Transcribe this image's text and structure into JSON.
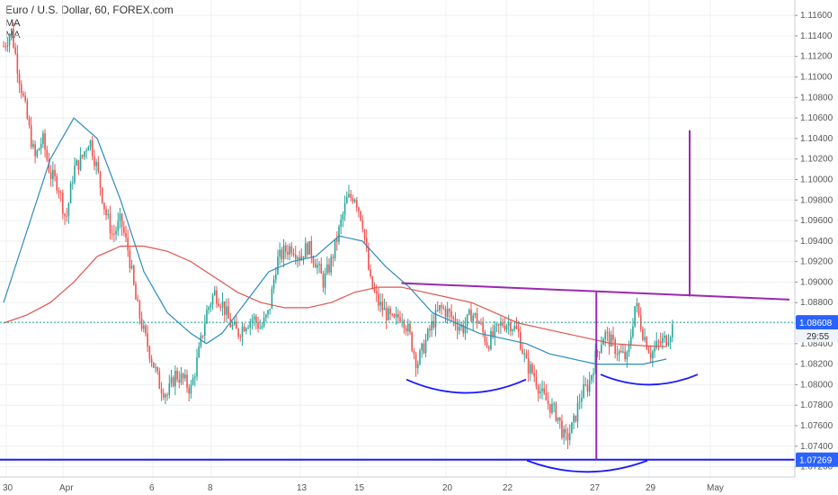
{
  "header": {
    "title": "Euro / U.S. Dollar, 60, FOREX.com",
    "ma1": "MA",
    "ma2": "MA"
  },
  "price_badge": {
    "value": "1.08608",
    "timer": "29:55",
    "color": "#2962ff"
  },
  "support_badge": {
    "value": "1.07269",
    "color": "#2962ff"
  },
  "colors": {
    "candle_up": "#26a69a",
    "candle_down": "#ef5350",
    "ma_fast": "#2b8cbe",
    "ma_slow": "#e0554e",
    "neckline": "#9c27b0",
    "shoulder_arcs": "#1a1aff",
    "support_line": "#1a1aff",
    "last_price_line": "#26a69a"
  },
  "chart_data": {
    "type": "candlestick",
    "title": "Euro / U.S. Dollar, 60, FOREX.com",
    "ylim": [
      1.071,
      1.1175
    ],
    "y_ticks": [
      "1.11600",
      "1.11400",
      "1.11200",
      "1.11000",
      "1.10800",
      "1.10600",
      "1.10400",
      "1.10200",
      "1.10000",
      "1.09800",
      "1.09600",
      "1.09400",
      "1.09200",
      "1.09000",
      "1.08800",
      "1.08600",
      "1.08400",
      "1.08200",
      "1.08000",
      "1.07800",
      "1.07600",
      "1.07400",
      "1.07200"
    ],
    "x_ticks": [
      "30",
      "Apr",
      "6",
      "8",
      "13",
      "15",
      "20",
      "22",
      "27",
      "29",
      "May"
    ],
    "close_path": [
      [
        0,
        1.113
      ],
      [
        1,
        1.1145
      ],
      [
        2,
        1.11
      ],
      [
        3,
        1.106
      ],
      [
        4,
        1.102
      ],
      [
        5,
        1.104
      ],
      [
        6,
        1.1005
      ],
      [
        7,
        1.0995
      ],
      [
        8,
        1.096
      ],
      [
        9,
        1.101
      ],
      [
        10,
        1.102
      ],
      [
        11,
        1.104
      ],
      [
        12,
        1.101
      ],
      [
        13,
        1.097
      ],
      [
        14,
        1.0945
      ],
      [
        15,
        1.096
      ],
      [
        16,
        1.093
      ],
      [
        17,
        1.088
      ],
      [
        18,
        1.085
      ],
      [
        19,
        1.0825
      ],
      [
        20,
        1.08
      ],
      [
        21,
        1.079
      ],
      [
        22,
        1.081
      ],
      [
        23,
        1.0805
      ],
      [
        24,
        1.0795
      ],
      [
        25,
        1.083
      ],
      [
        26,
        1.087
      ],
      [
        27,
        1.089
      ],
      [
        28,
        1.088
      ],
      [
        29,
        1.086
      ],
      [
        30,
        1.085
      ],
      [
        31,
        1.086
      ],
      [
        32,
        1.0865
      ],
      [
        33,
        1.0855
      ],
      [
        34,
        1.087
      ],
      [
        35,
        1.092
      ],
      [
        36,
        1.093
      ],
      [
        37,
        1.0935
      ],
      [
        38,
        1.0925
      ],
      [
        39,
        1.0935
      ],
      [
        40,
        1.092
      ],
      [
        41,
        1.09
      ],
      [
        42,
        1.092
      ],
      [
        43,
        1.095
      ],
      [
        44,
        1.098
      ],
      [
        45,
        1.0985
      ],
      [
        46,
        1.096
      ],
      [
        47,
        1.09
      ],
      [
        48,
        1.088
      ],
      [
        49,
        1.087
      ],
      [
        50,
        1.086
      ],
      [
        51,
        1.087
      ],
      [
        52,
        1.085
      ],
      [
        53,
        1.082
      ],
      [
        54,
        1.084
      ],
      [
        55,
        1.086
      ],
      [
        56,
        1.0875
      ],
      [
        57,
        1.087
      ],
      [
        58,
        1.086
      ],
      [
        59,
        1.0855
      ],
      [
        60,
        1.087
      ],
      [
        61,
        1.086
      ],
      [
        62,
        1.084
      ],
      [
        63,
        1.085
      ],
      [
        64,
        1.086
      ],
      [
        65,
        1.086
      ],
      [
        66,
        1.085
      ],
      [
        67,
        1.082
      ],
      [
        68,
        1.081
      ],
      [
        69,
        1.079
      ],
      [
        70,
        1.078
      ],
      [
        71,
        1.077
      ],
      [
        72,
        1.0745
      ],
      [
        73,
        1.076
      ],
      [
        74,
        1.079
      ],
      [
        75,
        1.08
      ],
      [
        76,
        1.083
      ],
      [
        77,
        1.085
      ],
      [
        78,
        1.084
      ],
      [
        79,
        1.083
      ],
      [
        80,
        1.0825
      ],
      [
        81,
        1.088
      ],
      [
        82,
        1.085
      ],
      [
        83,
        1.083
      ],
      [
        84,
        1.084
      ],
      [
        85,
        1.0845
      ],
      [
        86,
        1.086
      ]
    ],
    "ma_fast": [
      [
        0,
        1.088
      ],
      [
        3,
        1.095
      ],
      [
        6,
        1.102
      ],
      [
        9,
        1.106
      ],
      [
        12,
        1.104
      ],
      [
        15,
        1.098
      ],
      [
        18,
        1.091
      ],
      [
        21,
        1.087
      ],
      [
        24,
        1.085
      ],
      [
        26,
        1.084
      ],
      [
        28,
        1.085
      ],
      [
        31,
        1.088
      ],
      [
        34,
        1.091
      ],
      [
        37,
        1.092
      ],
      [
        40,
        1.0925
      ],
      [
        43,
        1.0945
      ],
      [
        46,
        1.094
      ],
      [
        49,
        1.0915
      ],
      [
        52,
        1.0895
      ],
      [
        55,
        1.087
      ],
      [
        58,
        1.086
      ],
      [
        61,
        1.085
      ],
      [
        64,
        1.0845
      ],
      [
        67,
        1.084
      ],
      [
        70,
        1.083
      ],
      [
        73,
        1.0825
      ],
      [
        76,
        1.082
      ],
      [
        79,
        1.082
      ],
      [
        82,
        1.082
      ],
      [
        85,
        1.0825
      ]
    ],
    "ma_slow": [
      [
        0,
        1.086
      ],
      [
        3,
        1.0868
      ],
      [
        6,
        1.088
      ],
      [
        9,
        1.09
      ],
      [
        12,
        1.0925
      ],
      [
        15,
        1.0935
      ],
      [
        18,
        1.0935
      ],
      [
        21,
        1.093
      ],
      [
        24,
        1.092
      ],
      [
        27,
        1.0905
      ],
      [
        30,
        1.089
      ],
      [
        33,
        1.088
      ],
      [
        36,
        1.0875
      ],
      [
        39,
        1.0875
      ],
      [
        42,
        1.088
      ],
      [
        45,
        1.089
      ],
      [
        48,
        1.0895
      ],
      [
        51,
        1.0895
      ],
      [
        54,
        1.089
      ],
      [
        57,
        1.0885
      ],
      [
        60,
        1.088
      ],
      [
        63,
        1.087
      ],
      [
        66,
        1.086
      ],
      [
        69,
        1.0855
      ],
      [
        72,
        1.085
      ],
      [
        75,
        1.0845
      ],
      [
        78,
        1.084
      ],
      [
        82,
        1.0838
      ],
      [
        85,
        1.0837
      ]
    ],
    "last_price": 1.08608,
    "support_level": 1.07269
  }
}
